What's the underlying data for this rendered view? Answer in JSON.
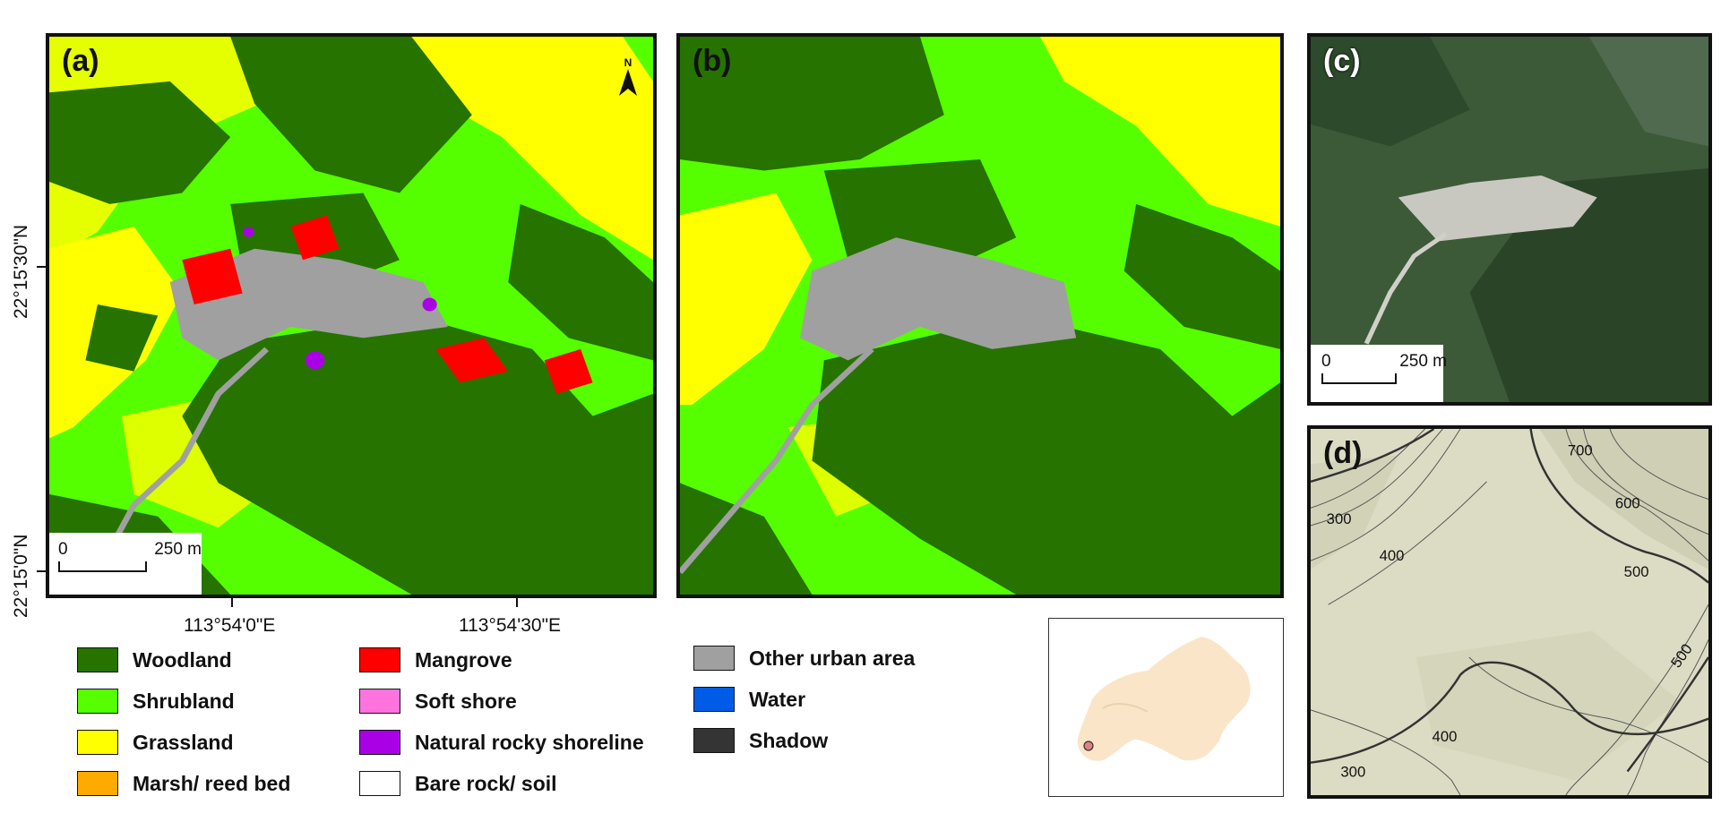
{
  "panels": {
    "a": {
      "label": "(a)"
    },
    "b": {
      "label": "(b)"
    },
    "c": {
      "label": "(c)"
    },
    "d": {
      "label": "(d)"
    }
  },
  "scalebars": {
    "a": {
      "start": "0",
      "end": "250 m"
    },
    "c": {
      "start": "0",
      "end": "250 m"
    }
  },
  "north_arrow": {
    "letter": "N",
    "icon": "north-arrow-icon"
  },
  "coordinates": {
    "lat": [
      "22°15'30\"N",
      "22°15'0\"N"
    ],
    "lon": [
      "113°54'0\"E",
      "113°54'30\"E"
    ]
  },
  "contour_labels": [
    "700",
    "600",
    "300",
    "400",
    "500",
    "500",
    "400",
    "300"
  ],
  "legend": [
    {
      "label": "Woodland",
      "color": "#267300"
    },
    {
      "label": "Shrubland",
      "color": "#55ff00"
    },
    {
      "label": "Grassland",
      "color": "#ffff00"
    },
    {
      "label": "Marsh/ reed bed",
      "color": "#ffaa00"
    },
    {
      "label": "Mangrove",
      "color": "#ff0000"
    },
    {
      "label": "Soft shore",
      "color": "#ff73df"
    },
    {
      "label": "Natural rocky shoreline",
      "color": "#a900e6"
    },
    {
      "label": "Bare rock/ soil",
      "color": "#ffffff"
    },
    {
      "label": "Other urban area",
      "color": "#a0a0a0"
    },
    {
      "label": "Water",
      "color": "#005ce6"
    },
    {
      "label": "Shadow",
      "color": "#343434"
    }
  ],
  "inset_colors": {
    "land": "#fbe5c8",
    "marker": "#e08080"
  }
}
